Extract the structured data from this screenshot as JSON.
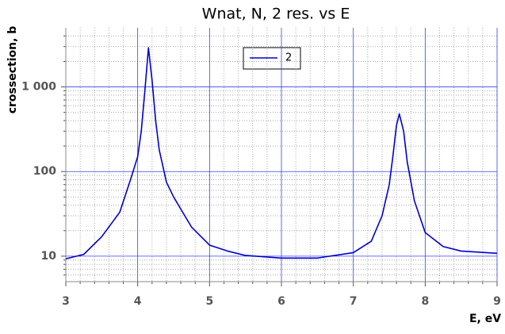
{
  "chart_data": {
    "type": "line",
    "title": "Wnat,  N,  2 res.  vs  E",
    "xlabel": "E, eV",
    "ylabel": "crossection, b",
    "yscale": "log",
    "grid": true,
    "legend": "upper center",
    "xlim": [
      3,
      9
    ],
    "xticks": [
      3,
      4,
      5,
      6,
      7,
      8,
      9
    ],
    "ylim": [
      5,
      5000
    ],
    "yticks": [
      10,
      100,
      {
        "value": 1000,
        "label": "1 000"
      }
    ],
    "x": [
      3.0,
      3.25,
      3.5,
      3.75,
      3.9,
      4.0,
      4.05,
      4.1,
      4.15,
      4.2,
      4.25,
      4.3,
      4.4,
      4.5,
      4.75,
      5.0,
      5.25,
      5.5,
      6.0,
      6.5,
      7.0,
      7.25,
      7.4,
      7.5,
      7.55,
      7.6,
      7.64,
      7.7,
      7.75,
      7.85,
      8.0,
      8.25,
      8.5,
      9.0
    ],
    "series": [
      {
        "name": "2",
        "color": "#0000cc",
        "values": [
          9.3,
          10.5,
          17,
          33,
          80,
          150,
          300,
          900,
          2900,
          1200,
          400,
          180,
          75,
          50,
          22,
          13.5,
          11.5,
          10.2,
          9.5,
          9.5,
          11,
          15,
          30,
          70,
          150,
          350,
          480,
          300,
          130,
          45,
          19,
          13,
          11.5,
          10.8
        ]
      }
    ]
  }
}
